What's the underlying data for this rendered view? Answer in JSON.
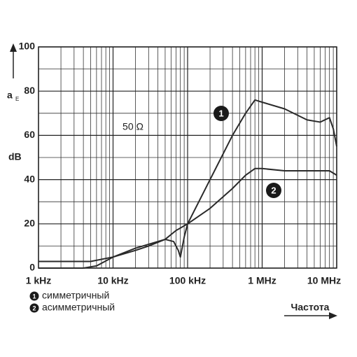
{
  "chart_data": {
    "type": "line",
    "log_x": true,
    "grid": true,
    "y_label": "a",
    "y_label_sub": "E",
    "y_unit": "dB",
    "x_label": "Частота",
    "annotation": "50 Ω",
    "xlim": [
      1000,
      10000000
    ],
    "xticks": [
      {
        "value": 1000,
        "label": "1 kHz"
      },
      {
        "value": 10000,
        "label": "10 kHz"
      },
      {
        "value": 100000,
        "label": "100 kHz"
      },
      {
        "value": 1000000,
        "label": "1 MHz"
      },
      {
        "value": 10000000,
        "label": "10 MHz"
      }
    ],
    "ylim": [
      0,
      100
    ],
    "yticks": [
      0,
      20,
      40,
      60,
      80,
      100
    ],
    "series": [
      {
        "name": "симметричный",
        "marker": "1",
        "color": "#2a2a2a",
        "x": [
          1000,
          5000,
          10000,
          20000,
          30000,
          50000,
          65000,
          75000,
          80000,
          90000,
          100000,
          200000,
          400000,
          600000,
          800000,
          1000000,
          2000000,
          4000000,
          6000000,
          8000000,
          9000000,
          10000000
        ],
        "values": [
          3,
          3,
          5,
          8,
          10,
          13,
          12,
          8,
          5,
          14,
          20,
          40,
          60,
          70,
          76,
          75,
          72,
          67,
          66,
          68,
          63,
          55
        ]
      },
      {
        "name": "асимметричный",
        "marker": "2",
        "color": "#2a2a2a",
        "x": [
          1000,
          4000,
          6000,
          10000,
          20000,
          50000,
          70000,
          100000,
          200000,
          400000,
          600000,
          800000,
          1000000,
          2000000,
          5000000,
          8000000,
          10000000
        ],
        "values": [
          0,
          0,
          1,
          5,
          9,
          13,
          17,
          20,
          27,
          36,
          42,
          45,
          45,
          44,
          44,
          44,
          42
        ]
      }
    ]
  }
}
